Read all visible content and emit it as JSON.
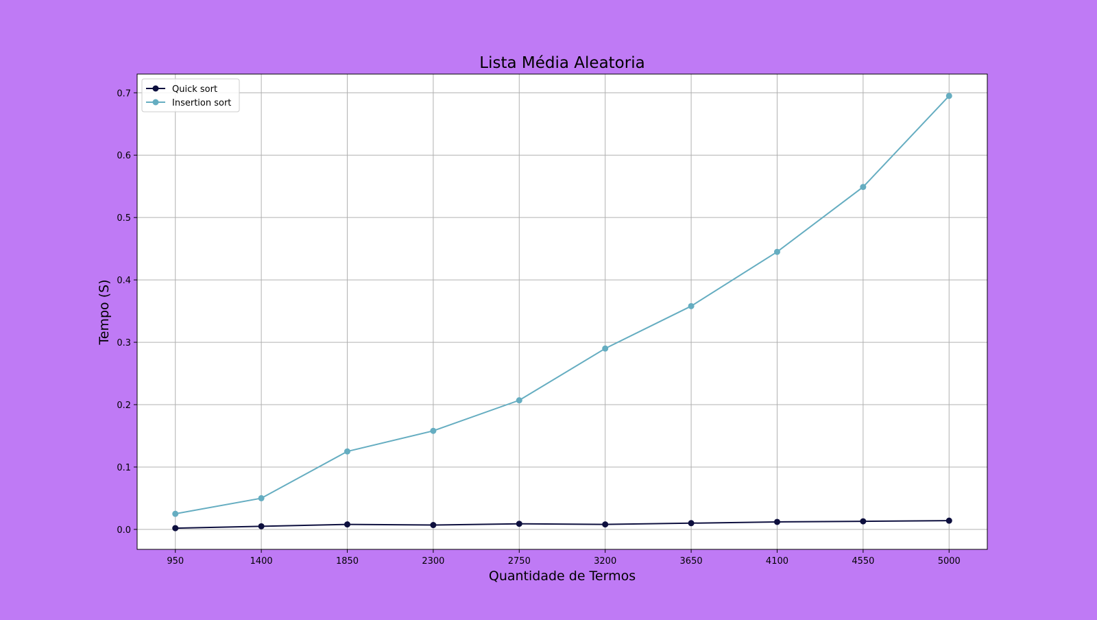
{
  "figure": {
    "background_color": "#bf7af5",
    "plot_background_color": "#ffffff"
  },
  "chart_data": {
    "type": "line",
    "title": "Lista Média Aleatoria",
    "xlabel": "Quantidade de Termos",
    "ylabel": "Tempo (S)",
    "x": [
      950,
      1400,
      1850,
      2300,
      2750,
      3200,
      3650,
      4100,
      4550,
      5000
    ],
    "x_tick_labels": [
      "950",
      "1400",
      "1850",
      "2300",
      "2750",
      "3200",
      "3650",
      "4100",
      "4550",
      "5000"
    ],
    "xlim": [
      750,
      5200
    ],
    "y_ticks": [
      0.0,
      0.1,
      0.2,
      0.3,
      0.4,
      0.5,
      0.6,
      0.7
    ],
    "y_tick_labels": [
      "0.0",
      "0.1",
      "0.2",
      "0.3",
      "0.4",
      "0.5",
      "0.6",
      "0.7"
    ],
    "ylim": [
      -0.032,
      0.73
    ],
    "grid": true,
    "legend_position": "top-left",
    "series": [
      {
        "name": "Quick sort",
        "color": "#0d0f3e",
        "marker": "circle",
        "values": [
          0.002,
          0.005,
          0.008,
          0.007,
          0.009,
          0.008,
          0.01,
          0.012,
          0.013,
          0.014
        ]
      },
      {
        "name": "Insertion sort",
        "color": "#65adc1",
        "marker": "circle",
        "values": [
          0.025,
          0.05,
          0.125,
          0.158,
          0.207,
          0.29,
          0.358,
          0.445,
          0.549,
          0.695
        ]
      }
    ]
  }
}
